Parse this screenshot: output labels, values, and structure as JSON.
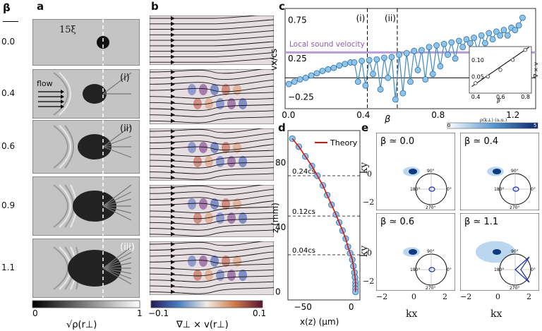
{
  "panel_labels": {
    "a": "a",
    "b": "b",
    "c": "c",
    "d": "d",
    "e": "e"
  },
  "beta_header": "β",
  "panel_a": {
    "rows": [
      "0.0",
      "0.4",
      "0.6",
      "0.9",
      "1.1"
    ],
    "row_tags": [
      "",
      "(i)",
      "(ii)",
      "",
      "(iii)"
    ],
    "scale_label": "15ξ",
    "flow_label": "flow",
    "colorbar": {
      "min": "0",
      "max": "1",
      "label": "√ρ(r⊥)"
    }
  },
  "panel_b": {
    "colorbar": {
      "min": "−0.1",
      "max": "0.1",
      "label": "∇⊥ × v(r⊥)"
    }
  },
  "panel_c": {
    "ylabel": "vx/cs",
    "xlabel": "β",
    "yticks": [
      "0.75",
      "0.25",
      "−0.25"
    ],
    "xticks": [
      "0.0",
      "0.4",
      "0.8",
      "1.2"
    ],
    "sound_label": "Local sound velocity",
    "markers": [
      "(i)",
      "(ii)"
    ],
    "inset": {
      "xlabel": "β",
      "ylabel": "∇ × v",
      "yticks": [
        "0.10",
        "0.05"
      ],
      "xticks": [
        "0.4",
        "0.6",
        "0.8"
      ]
    }
  },
  "chart_data": [
    {
      "type": "scatter",
      "xlabel": "β",
      "ylabel": "vx/cs",
      "xlim": [
        -0.02,
        1.32
      ],
      "ylim": [
        -0.4,
        0.9
      ],
      "x": [
        0.0,
        0.03,
        0.06,
        0.09,
        0.12,
        0.15,
        0.18,
        0.21,
        0.24,
        0.27,
        0.3,
        0.33,
        0.35,
        0.37,
        0.39,
        0.41,
        0.43,
        0.45,
        0.47,
        0.49,
        0.51,
        0.53,
        0.55,
        0.57,
        0.59,
        0.61,
        0.63,
        0.65,
        0.67,
        0.69,
        0.71,
        0.73,
        0.75,
        0.77,
        0.79,
        0.81,
        0.83,
        0.85,
        0.87,
        0.89,
        0.91,
        0.93,
        0.95,
        0.97,
        0.99,
        1.01,
        1.03,
        1.05,
        1.07,
        1.09,
        1.11,
        1.13,
        1.15,
        1.17,
        1.19,
        1.21,
        1.23,
        1.25
      ],
      "y": [
        -0.08,
        -0.05,
        -0.02,
        0.0,
        0.03,
        0.06,
        0.09,
        0.11,
        0.13,
        0.16,
        0.18,
        0.2,
        0.2,
        -0.05,
        0.22,
        -0.1,
        0.23,
        0.05,
        0.24,
        -0.15,
        0.26,
        0.0,
        0.27,
        -0.28,
        0.3,
        -0.2,
        0.32,
        -0.05,
        0.35,
        0.1,
        0.36,
        -0.02,
        0.4,
        0.05,
        0.42,
        0.15,
        0.44,
        0.3,
        0.46,
        0.25,
        0.48,
        0.4,
        0.5,
        0.45,
        0.52,
        0.35,
        0.55,
        0.45,
        0.58,
        0.5,
        0.6,
        0.55,
        0.62,
        0.55,
        0.65,
        0.62,
        0.68,
        0.78
      ],
      "hlines": [
        {
          "y": 0.33,
          "label": "Local sound velocity"
        },
        {
          "y": 0.0
        }
      ],
      "vlines": [
        0.42,
        0.58
      ]
    },
    {
      "type": "scatter",
      "xlabel": "β",
      "ylabel": "∇ × v",
      "xlim": [
        0.35,
        0.85
      ],
      "ylim": [
        0.0,
        0.14
      ],
      "x": [
        0.4,
        0.5,
        0.6,
        0.7,
        0.8
      ],
      "y": [
        0.03,
        0.05,
        0.07,
        0.1,
        0.13
      ]
    },
    {
      "type": "line",
      "xlabel": "x(z) (μm)",
      "ylabel": "z (mm)",
      "xlim": [
        -62,
        4
      ],
      "ylim": [
        -5,
        100
      ],
      "xticks": [
        "−50",
        "0"
      ],
      "yticks": [
        "80",
        "40",
        "0"
      ],
      "legend": "Theory",
      "x": [
        -58,
        -52,
        -46,
        -40,
        -35,
        -30,
        -26,
        -22,
        -18,
        -15,
        -12,
        -9,
        -7,
        -5,
        -3,
        -2,
        -1,
        -0.5,
        0,
        0,
        0,
        0
      ],
      "y": [
        95,
        90,
        84,
        78,
        72,
        66,
        60,
        54,
        48,
        43,
        38,
        33,
        28,
        24,
        20,
        16,
        12,
        9,
        6,
        4,
        2,
        0
      ],
      "annotations": [
        {
          "y": 72,
          "label": "0.24cs"
        },
        {
          "y": 47,
          "label": "0.12cs"
        },
        {
          "y": 23,
          "label": "0.04cs"
        }
      ]
    },
    {
      "type": "heatmap",
      "xlabel": "kx",
      "ylabel": "ky",
      "colorbar": {
        "min": "0",
        "max": "5",
        "label": "ρ(k⊥) (a.u.)"
      },
      "panels": [
        "β ≃ 0.0",
        "β ≃ 0.4",
        "β ≃ 0.6",
        "β ≃ 1.1"
      ],
      "xticks": [
        "−2",
        "0",
        "2"
      ],
      "yticks": [
        "0",
        "−2"
      ],
      "polar_labels": [
        "90°",
        "180°",
        "0°",
        "270°"
      ]
    }
  ],
  "panel_e": {
    "titles": [
      "β ≃ 0.0",
      "β ≃ 0.4",
      "β ≃ 0.6",
      "β ≃ 1.1"
    ],
    "ylabel": "ky",
    "xlabel": "kx",
    "xticks": [
      "−2",
      "0",
      "2"
    ],
    "yticks": [
      "0",
      "−2"
    ],
    "cbar": {
      "min": "0",
      "max": "5",
      "label": "ρ(k⊥) (a.u.)"
    },
    "polar": {
      "top": "90°",
      "left": "180°",
      "right": "0°",
      "bottom": "270°"
    }
  }
}
